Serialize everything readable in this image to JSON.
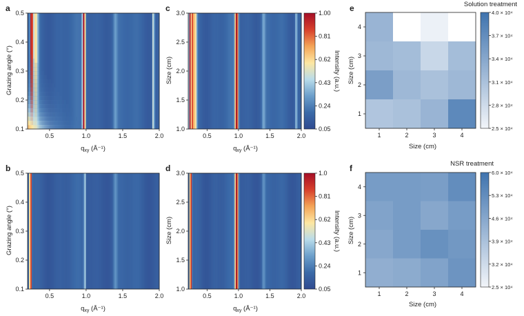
{
  "panels": {
    "a": {
      "letter": "a",
      "xlabel": "q",
      "xsub": "xy",
      "xunit": " (Å⁻¹)",
      "ylabel": "Grazing angle (°)"
    },
    "b": {
      "letter": "b",
      "xlabel": "q",
      "xsub": "xy",
      "xunit": " (Å⁻¹)",
      "ylabel": "Grazing angle (°)"
    },
    "c": {
      "letter": "c",
      "xlabel": "q",
      "xsub": "xy",
      "xunit": " (Å⁻¹)",
      "ylabel": "Size (cm)",
      "cbar_label": "Intensity (a.u.)"
    },
    "d": {
      "letter": "d",
      "xlabel": "q",
      "xsub": "xy",
      "xunit": " (Å⁻¹)",
      "ylabel": "Size (cm)",
      "cbar_label": "Intensity (a.u.)"
    },
    "e": {
      "letter": "e",
      "title": "Solution treatment",
      "xlabel": "Size (cm)",
      "ylabel": "Size (cm)"
    },
    "f": {
      "letter": "f",
      "title": "NSR treatment",
      "xlabel": "Size (cm)",
      "ylabel": "Size (cm)"
    }
  },
  "colors": {
    "cmap_rdylbu": [
      "#2f4a8f",
      "#3b6aa8",
      "#6c9fcb",
      "#b9dcea",
      "#fde7a2",
      "#f4a457",
      "#d7402c",
      "#a50e26"
    ],
    "cmap_blues": [
      "#f2f5f9",
      "#3f73ae"
    ],
    "axis": "#222222"
  },
  "chart_data": [
    {
      "id": "a",
      "type": "heatmap",
      "xlabel": "qxy (Å⁻¹)",
      "ylabel": "Grazing angle (°)",
      "xlim": [
        0.2,
        2.0
      ],
      "ylim": [
        0.1,
        0.5
      ],
      "xticks": [
        0.5,
        1.0,
        1.5,
        2.0
      ],
      "xtick_labels": [
        "0.5",
        "1.0",
        "1.5",
        "2.0"
      ],
      "yticks": [
        0.1,
        0.2,
        0.3,
        0.4,
        0.5
      ],
      "ytick_labels": [
        "0.1",
        "0.2",
        "0.3",
        "0.4",
        "0.5"
      ],
      "peaks_q": [
        0.28,
        0.97,
        1.4,
        1.92
      ],
      "note_visible": "strong diffuse intensity at low grazing angle and low q"
    },
    {
      "id": "b",
      "type": "heatmap",
      "xlabel": "qxy (Å⁻¹)",
      "ylabel": "Grazing angle (°)",
      "xlim": [
        0.2,
        2.0
      ],
      "ylim": [
        0.1,
        0.5
      ],
      "xticks": [
        0.5,
        1.0,
        1.5,
        2.0
      ],
      "xtick_labels": [
        "0.5",
        "1.0",
        "1.5",
        "2.0"
      ],
      "yticks": [
        0.1,
        0.2,
        0.3,
        0.4,
        0.5
      ],
      "ytick_labels": [
        "0.1",
        "0.2",
        "0.3",
        "0.4",
        "0.5"
      ],
      "peaks_q": [
        0.24,
        0.98
      ]
    },
    {
      "id": "c",
      "type": "heatmap",
      "xlabel": "qxy (Å⁻¹)",
      "ylabel": "Size (cm)",
      "xlim": [
        0.2,
        2.0
      ],
      "ylim": [
        1.0,
        3.0
      ],
      "xticks": [
        0.5,
        1.0,
        1.5,
        2.0
      ],
      "xtick_labels": [
        "0.5",
        "1.0",
        "1.5",
        "2.0"
      ],
      "yticks": [
        1.0,
        1.5,
        2.0,
        2.5,
        3.0
      ],
      "ytick_labels": [
        "1.0",
        "1.5",
        "2.0",
        "2.5",
        "3.0"
      ],
      "colorbar": {
        "label": "Intensity (a.u.)",
        "range": [
          0.05,
          1.0
        ],
        "ticks": [
          0.05,
          0.24,
          0.43,
          0.62,
          0.81,
          1.0
        ],
        "tick_labels": [
          "0.05",
          "0.24",
          "0.43",
          "0.62",
          "0.81",
          "1.00"
        ]
      }
    },
    {
      "id": "d",
      "type": "heatmap",
      "xlabel": "qxy (Å⁻¹)",
      "ylabel": "Size (cm)",
      "xlim": [
        0.2,
        2.0
      ],
      "ylim": [
        1.0,
        3.0
      ],
      "xticks": [
        0.5,
        1.0,
        1.5,
        2.0
      ],
      "xtick_labels": [
        "0.5",
        "1.0",
        "1.5",
        "2.0"
      ],
      "yticks": [
        1.0,
        1.5,
        2.0,
        2.5,
        3.0
      ],
      "ytick_labels": [
        "1.0",
        "1.5",
        "2.0",
        "2.5",
        "3.0"
      ],
      "colorbar": {
        "label": "Intensity (a.u.)",
        "range": [
          0.05,
          1.0
        ],
        "ticks": [
          0.05,
          0.24,
          0.43,
          0.62,
          0.81,
          1.0
        ],
        "tick_labels": [
          "0.05",
          "0.24",
          "0.43",
          "0.62",
          "0.81",
          "1.0"
        ]
      }
    },
    {
      "id": "e",
      "type": "heatmap",
      "title": "Solution treatment",
      "xlabel": "Size (cm)",
      "ylabel": "Size (cm)",
      "x": [
        1,
        2,
        3,
        4
      ],
      "y": [
        1,
        2,
        3,
        4
      ],
      "values_rows_top_to_bottom": [
        [
          32500.0,
          25000.0,
          25500.0,
          25000.0
        ],
        [
          32000.0,
          31500.0,
          28500.0,
          31500.0
        ],
        [
          35000.0,
          32000.0,
          31000.0,
          32000.0
        ],
        [
          30500.0,
          31000.0,
          32500.0,
          37500.0
        ]
      ],
      "colorbar": {
        "range": [
          25000.0,
          40000.0
        ],
        "tick_labels": [
          "2.5 × 10⁴",
          "2.8 × 10⁴",
          "3.1 × 10⁴",
          "3.4 × 10⁴",
          "3.7 × 10⁴",
          "4.0 × 10⁴"
        ],
        "ticks": [
          25000.0,
          28000.0,
          31000.0,
          34000.0,
          37000.0,
          40000.0
        ]
      }
    },
    {
      "id": "f",
      "type": "heatmap",
      "title": "NSR treatment",
      "xlabel": "Size (cm)",
      "ylabel": "Size (cm)",
      "x": [
        1,
        2,
        3,
        4
      ],
      "y": [
        1,
        2,
        3,
        4
      ],
      "values_rows_top_to_bottom": [
        [
          49000.0,
          49000.0,
          48500.0,
          53000.0
        ],
        [
          47000.0,
          49000.0,
          46000.0,
          49000.0
        ],
        [
          46000.0,
          49000.0,
          52000.0,
          50000.0
        ],
        [
          44000.0,
          45000.0,
          47000.0,
          51000.0
        ]
      ],
      "colorbar": {
        "range": [
          25000.0,
          60000.0
        ],
        "tick_labels": [
          "2.5 × 10⁴",
          "3.2 × 10⁴",
          "3.9 × 10⁴",
          "4.6 × 10⁴",
          "5.3 × 10⁴",
          "6.0 × 10⁴"
        ],
        "ticks": [
          25000.0,
          32000.0,
          39000.0,
          46000.0,
          53000.0,
          60000.0
        ]
      }
    }
  ]
}
